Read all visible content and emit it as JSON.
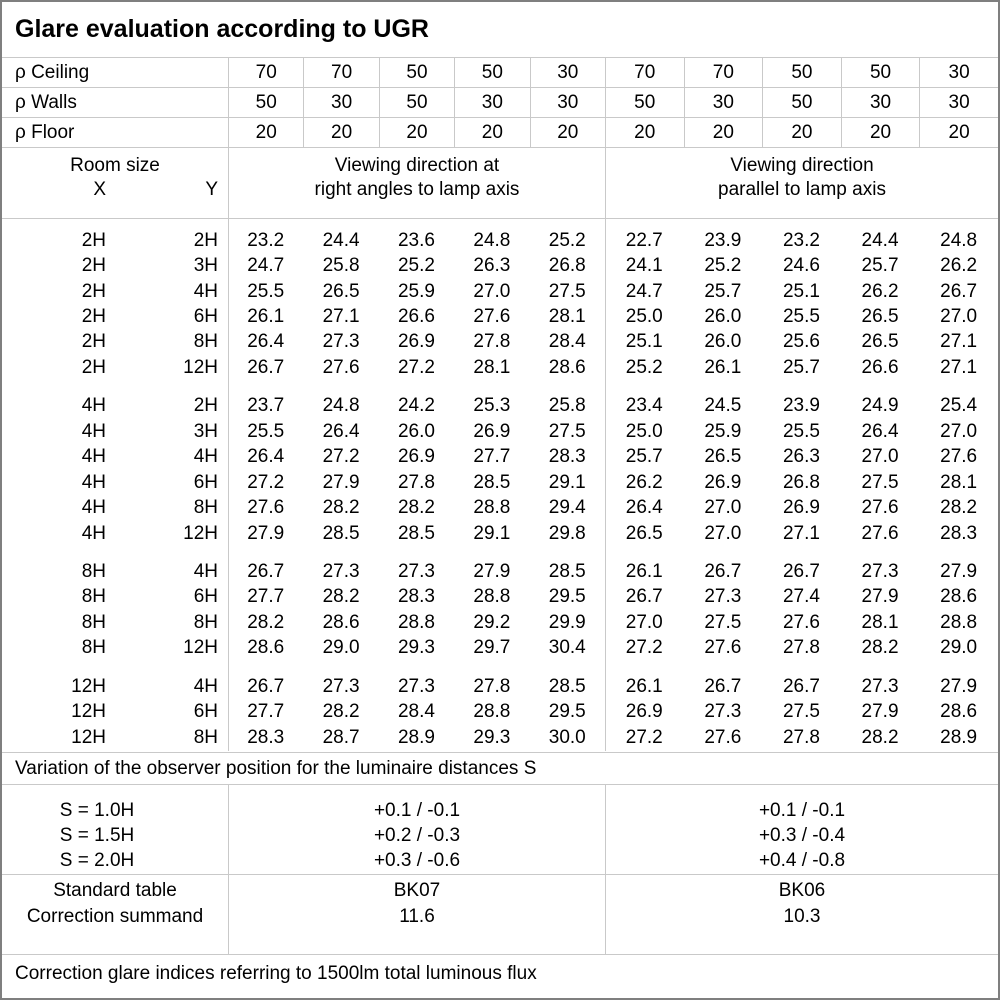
{
  "title": "Glare evaluation according to UGR",
  "reflectances": {
    "rows": [
      {
        "label": "ρ Ceiling",
        "values": [
          "70",
          "70",
          "50",
          "50",
          "30",
          "70",
          "70",
          "50",
          "50",
          "30"
        ]
      },
      {
        "label": "ρ Walls",
        "values": [
          "50",
          "30",
          "50",
          "30",
          "30",
          "50",
          "30",
          "50",
          "30",
          "30"
        ]
      },
      {
        "label": "ρ Floor",
        "values": [
          "20",
          "20",
          "20",
          "20",
          "20",
          "20",
          "20",
          "20",
          "20",
          "20"
        ]
      }
    ]
  },
  "subhead": {
    "room_size": "Room size",
    "x": "X",
    "y": "Y",
    "group1": [
      "Viewing direction at",
      "right angles to lamp axis"
    ],
    "group2": [
      "Viewing direction",
      "parallel to lamp axis"
    ]
  },
  "ugr_blocks": [
    {
      "rows": [
        {
          "x": "2H",
          "y": "2H",
          "values": [
            "23.2",
            "24.4",
            "23.6",
            "24.8",
            "25.2",
            "22.7",
            "23.9",
            "23.2",
            "24.4",
            "24.8"
          ]
        },
        {
          "x": "2H",
          "y": "3H",
          "values": [
            "24.7",
            "25.8",
            "25.2",
            "26.3",
            "26.8",
            "24.1",
            "25.2",
            "24.6",
            "25.7",
            "26.2"
          ]
        },
        {
          "x": "2H",
          "y": "4H",
          "values": [
            "25.5",
            "26.5",
            "25.9",
            "27.0",
            "27.5",
            "24.7",
            "25.7",
            "25.1",
            "26.2",
            "26.7"
          ]
        },
        {
          "x": "2H",
          "y": "6H",
          "values": [
            "26.1",
            "27.1",
            "26.6",
            "27.6",
            "28.1",
            "25.0",
            "26.0",
            "25.5",
            "26.5",
            "27.0"
          ]
        },
        {
          "x": "2H",
          "y": "8H",
          "values": [
            "26.4",
            "27.3",
            "26.9",
            "27.8",
            "28.4",
            "25.1",
            "26.0",
            "25.6",
            "26.5",
            "27.1"
          ]
        },
        {
          "x": "2H",
          "y": "12H",
          "values": [
            "26.7",
            "27.6",
            "27.2",
            "28.1",
            "28.6",
            "25.2",
            "26.1",
            "25.7",
            "26.6",
            "27.1"
          ]
        }
      ]
    },
    {
      "rows": [
        {
          "x": "4H",
          "y": "2H",
          "values": [
            "23.7",
            "24.8",
            "24.2",
            "25.3",
            "25.8",
            "23.4",
            "24.5",
            "23.9",
            "24.9",
            "25.4"
          ]
        },
        {
          "x": "4H",
          "y": "3H",
          "values": [
            "25.5",
            "26.4",
            "26.0",
            "26.9",
            "27.5",
            "25.0",
            "25.9",
            "25.5",
            "26.4",
            "27.0"
          ]
        },
        {
          "x": "4H",
          "y": "4H",
          "values": [
            "26.4",
            "27.2",
            "26.9",
            "27.7",
            "28.3",
            "25.7",
            "26.5",
            "26.3",
            "27.0",
            "27.6"
          ]
        },
        {
          "x": "4H",
          "y": "6H",
          "values": [
            "27.2",
            "27.9",
            "27.8",
            "28.5",
            "29.1",
            "26.2",
            "26.9",
            "26.8",
            "27.5",
            "28.1"
          ]
        },
        {
          "x": "4H",
          "y": "8H",
          "values": [
            "27.6",
            "28.2",
            "28.2",
            "28.8",
            "29.4",
            "26.4",
            "27.0",
            "26.9",
            "27.6",
            "28.2"
          ]
        },
        {
          "x": "4H",
          "y": "12H",
          "values": [
            "27.9",
            "28.5",
            "28.5",
            "29.1",
            "29.8",
            "26.5",
            "27.0",
            "27.1",
            "27.6",
            "28.3"
          ]
        }
      ]
    },
    {
      "rows": [
        {
          "x": "8H",
          "y": "4H",
          "values": [
            "26.7",
            "27.3",
            "27.3",
            "27.9",
            "28.5",
            "26.1",
            "26.7",
            "26.7",
            "27.3",
            "27.9"
          ]
        },
        {
          "x": "8H",
          "y": "6H",
          "values": [
            "27.7",
            "28.2",
            "28.3",
            "28.8",
            "29.5",
            "26.7",
            "27.3",
            "27.4",
            "27.9",
            "28.6"
          ]
        },
        {
          "x": "8H",
          "y": "8H",
          "values": [
            "28.2",
            "28.6",
            "28.8",
            "29.2",
            "29.9",
            "27.0",
            "27.5",
            "27.6",
            "28.1",
            "28.8"
          ]
        },
        {
          "x": "8H",
          "y": "12H",
          "values": [
            "28.6",
            "29.0",
            "29.3",
            "29.7",
            "30.4",
            "27.2",
            "27.6",
            "27.8",
            "28.2",
            "29.0"
          ]
        }
      ]
    },
    {
      "rows": [
        {
          "x": "12H",
          "y": "4H",
          "values": [
            "26.7",
            "27.3",
            "27.3",
            "27.8",
            "28.5",
            "26.1",
            "26.7",
            "26.7",
            "27.3",
            "27.9"
          ]
        },
        {
          "x": "12H",
          "y": "6H",
          "values": [
            "27.7",
            "28.2",
            "28.4",
            "28.8",
            "29.5",
            "26.9",
            "27.3",
            "27.5",
            "27.9",
            "28.6"
          ]
        },
        {
          "x": "12H",
          "y": "8H",
          "values": [
            "28.3",
            "28.7",
            "28.9",
            "29.3",
            "30.0",
            "27.2",
            "27.6",
            "27.8",
            "28.2",
            "28.9"
          ]
        }
      ]
    }
  ],
  "variation_note": "Variation of the observer position for the luminaire distances S",
  "variation": {
    "labels": [
      "S = 1.0H",
      "S = 1.5H",
      "S = 2.0H"
    ],
    "group1": [
      "+0.1 / -0.1",
      "+0.2 / -0.3",
      "+0.3 / -0.6"
    ],
    "group2": [
      "+0.1 / -0.1",
      "+0.3 / -0.4",
      "+0.4 / -0.8"
    ]
  },
  "summary": {
    "labels": [
      "Standard table",
      "Correction summand"
    ],
    "group1": [
      "BK07",
      "11.6"
    ],
    "group2": [
      "BK06",
      "10.3"
    ]
  },
  "footer": "Correction glare indices referring to 1500lm total luminous flux",
  "colors": {
    "background": "#ffffff",
    "text": "#000000",
    "border_outer": "#7f7f7f",
    "border_inner": "#c9c9c9"
  }
}
